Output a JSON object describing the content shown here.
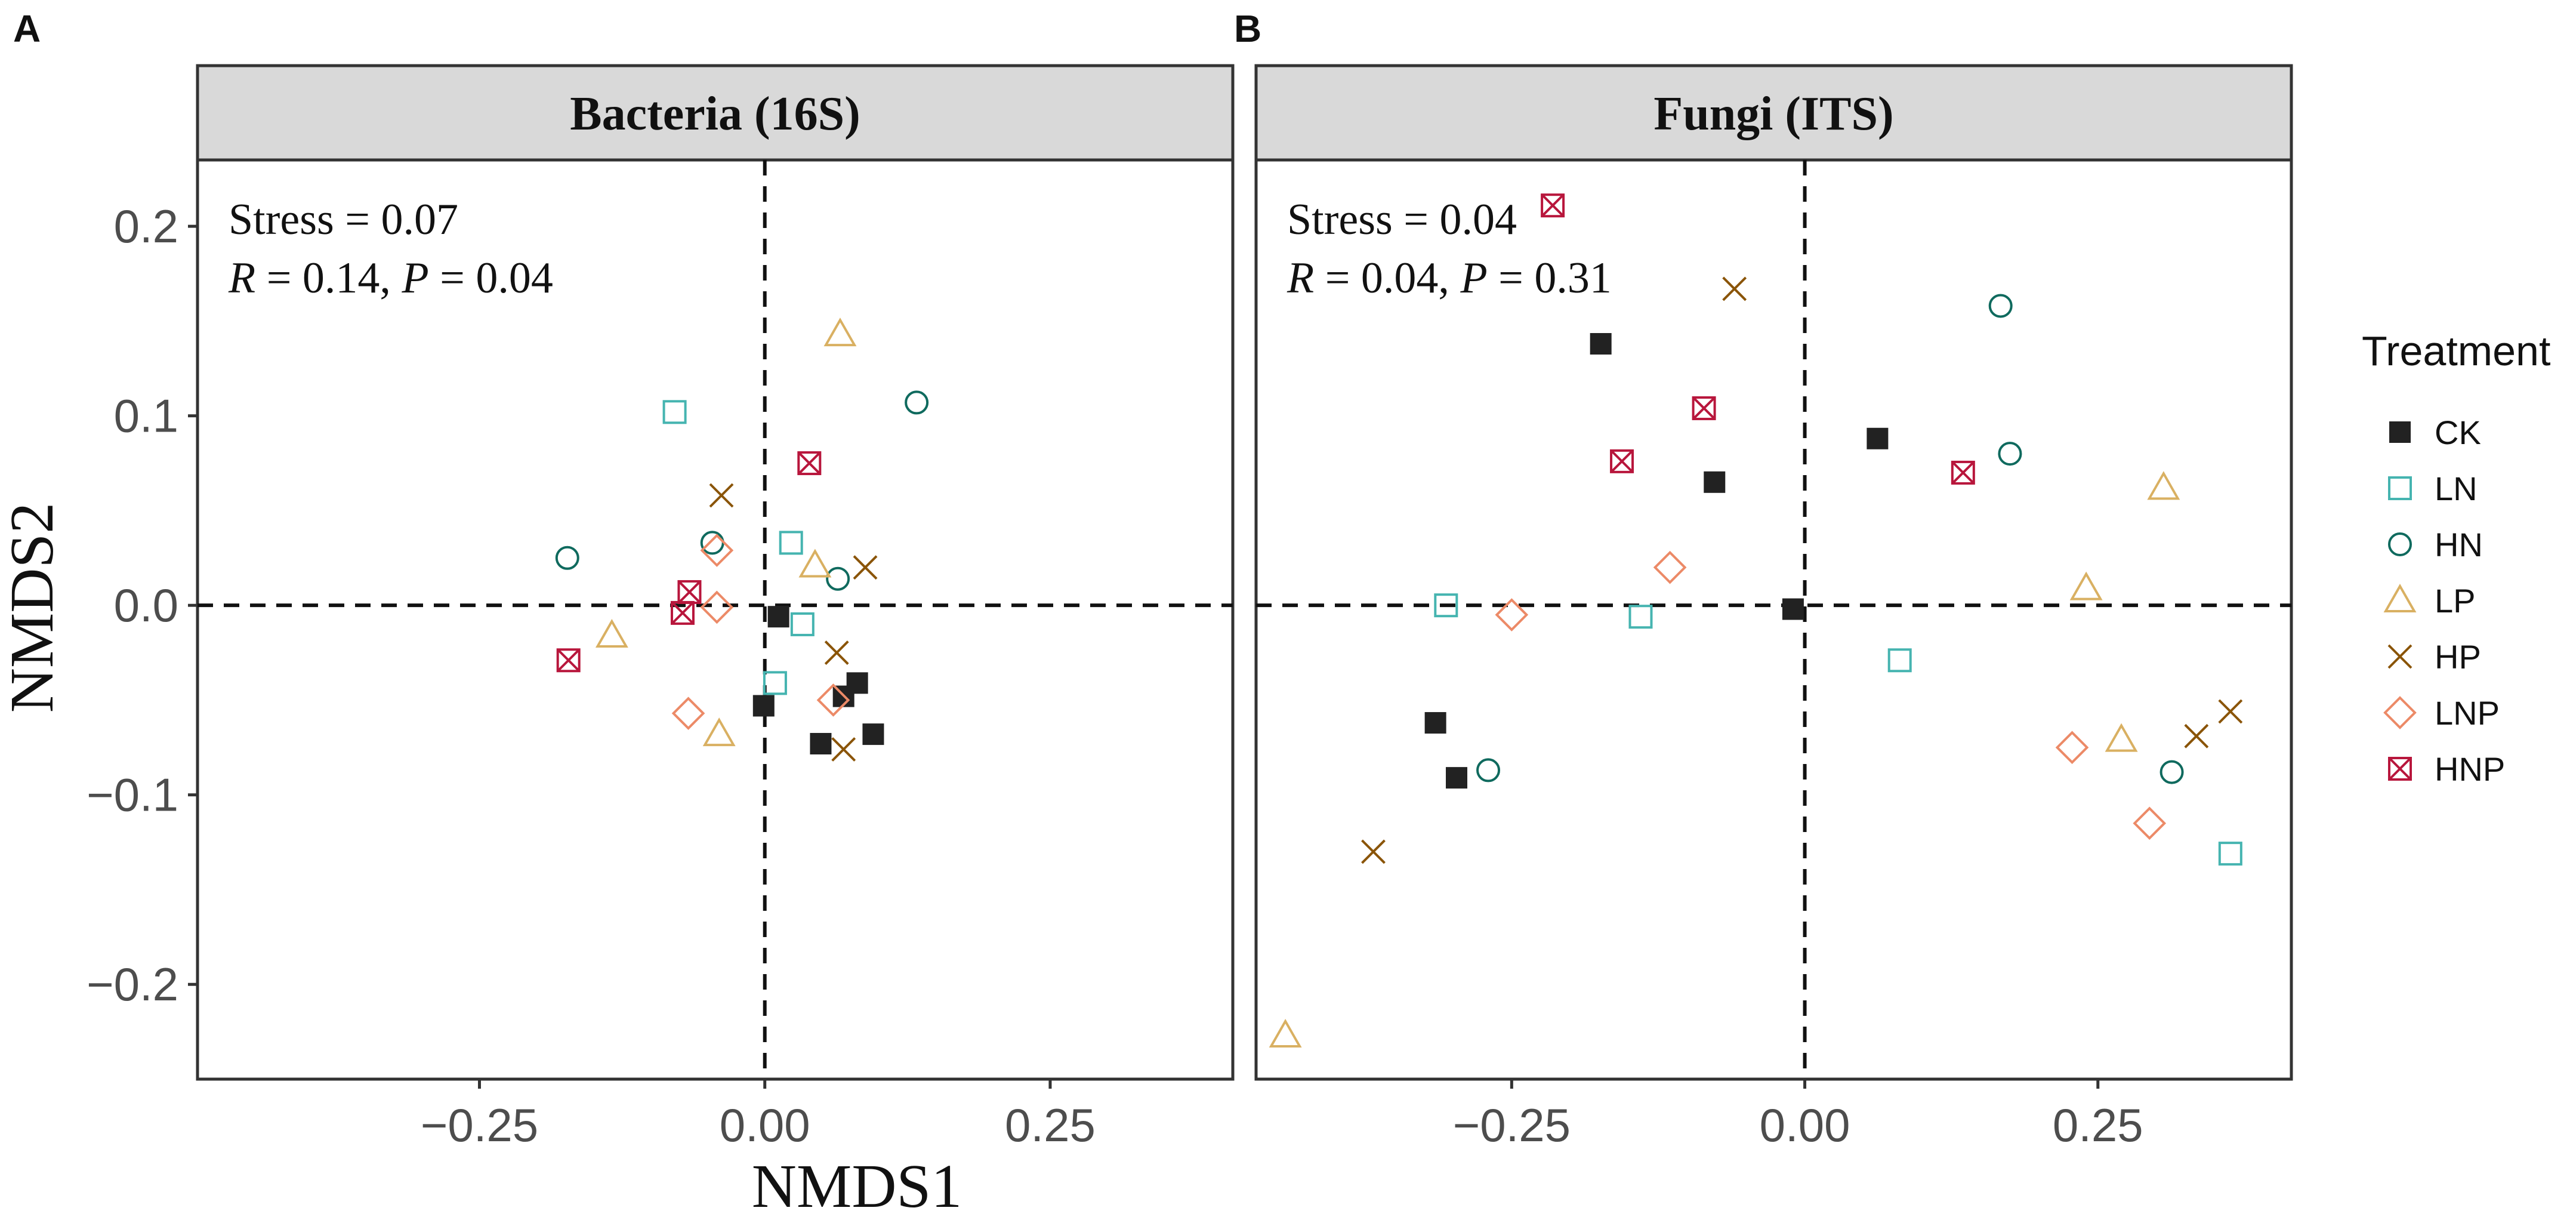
{
  "figure": {
    "x_axis_title": "NMDS1",
    "y_axis_title": "NMDS2",
    "legend_title": "Treatment"
  },
  "treatments": [
    {
      "code": "CK",
      "shape": "filled-square",
      "color": "#222222"
    },
    {
      "code": "LN",
      "shape": "open-square",
      "color": "#45b4b0"
    },
    {
      "code": "HN",
      "shape": "open-circle",
      "color": "#0f6a5e"
    },
    {
      "code": "LP",
      "shape": "open-triangle",
      "color": "#d9b062"
    },
    {
      "code": "HP",
      "shape": "cross",
      "color": "#8a5407"
    },
    {
      "code": "LNP",
      "shape": "open-diamond",
      "color": "#ec8a67"
    },
    {
      "code": "HNP",
      "shape": "boxed-x",
      "color": "#b8163c"
    }
  ],
  "chart_data": [
    {
      "type": "scatter",
      "panel_label": "A",
      "title": "Bacteria (16S)",
      "xlabel": "NMDS1",
      "ylabel": "NMDS2",
      "xlim": [
        -0.497,
        0.41
      ],
      "ylim": [
        -0.25,
        0.235
      ],
      "x_ticks": [
        -0.25,
        0.0,
        0.25
      ],
      "x_tick_labels": [
        "−0.25",
        "0.00",
        "0.25"
      ],
      "y_ticks": [
        -0.2,
        -0.1,
        0.0,
        0.1,
        0.2
      ],
      "y_tick_labels": [
        "−0.2",
        "−0.1",
        "0.0",
        "0.1",
        "0.2"
      ],
      "reference_lines": {
        "x": 0,
        "y": 0
      },
      "annotation": {
        "stress": "Stress = 0.07",
        "r_label": "R",
        "r_value": " = 0.14, ",
        "p_label": "P",
        "p_value": " = 0.04"
      },
      "series": [
        {
          "name": "CK",
          "points": [
            [
              0.012,
              -0.006
            ],
            [
              -0.001,
              -0.053
            ],
            [
              0.049,
              -0.073
            ],
            [
              0.069,
              -0.048
            ],
            [
              0.081,
              -0.041
            ],
            [
              0.095,
              -0.068
            ]
          ]
        },
        {
          "name": "LN",
          "points": [
            [
              -0.079,
              0.102
            ],
            [
              0.023,
              0.033
            ],
            [
              0.033,
              -0.01
            ],
            [
              0.009,
              -0.041
            ]
          ]
        },
        {
          "name": "HN",
          "points": [
            [
              0.133,
              0.107
            ],
            [
              -0.173,
              0.025
            ],
            [
              -0.046,
              0.033
            ],
            [
              0.064,
              0.014
            ]
          ]
        },
        {
          "name": "LP",
          "points": [
            [
              0.066,
              0.143
            ],
            [
              0.044,
              0.021
            ],
            [
              -0.134,
              -0.016
            ],
            [
              -0.04,
              -0.068
            ]
          ]
        },
        {
          "name": "HP",
          "points": [
            [
              -0.038,
              0.058
            ],
            [
              0.088,
              0.02
            ],
            [
              0.063,
              -0.025
            ],
            [
              0.069,
              -0.076
            ]
          ]
        },
        {
          "name": "LNP",
          "points": [
            [
              -0.042,
              0.029
            ],
            [
              -0.042,
              -0.001
            ],
            [
              -0.067,
              -0.057
            ],
            [
              0.06,
              -0.05
            ]
          ]
        },
        {
          "name": "HNP",
          "points": [
            [
              0.039,
              0.075
            ],
            [
              -0.066,
              0.007
            ],
            [
              -0.072,
              -0.004
            ],
            [
              -0.172,
              -0.029
            ]
          ]
        }
      ]
    },
    {
      "type": "scatter",
      "panel_label": "B",
      "title": "Fungi (ITS)",
      "xlabel": "NMDS1",
      "ylabel": "NMDS2",
      "xlim": [
        -0.468,
        0.415
      ],
      "ylim": [
        -0.25,
        0.235
      ],
      "x_ticks": [
        -0.25,
        0.0,
        0.25
      ],
      "x_tick_labels": [
        "−0.25",
        "0.00",
        "0.25"
      ],
      "y_ticks": [
        -0.2,
        -0.1,
        0.0,
        0.1,
        0.2
      ],
      "y_tick_labels": [
        "−0.2",
        "−0.1",
        "0.0",
        "0.1",
        "0.2"
      ],
      "reference_lines": {
        "x": 0,
        "y": 0
      },
      "annotation": {
        "stress": "Stress = 0.04",
        "r_label": "R",
        "r_value": " = 0.04, ",
        "p_label": "P",
        "p_value": " = 0.31"
      },
      "series": [
        {
          "name": "CK",
          "points": [
            [
              -0.174,
              0.138
            ],
            [
              -0.077,
              0.065
            ],
            [
              0.062,
              0.088
            ],
            [
              -0.01,
              -0.002
            ],
            [
              -0.315,
              -0.062
            ],
            [
              -0.297,
              -0.091
            ]
          ]
        },
        {
          "name": "LN",
          "points": [
            [
              -0.306,
              0.0
            ],
            [
              -0.14,
              -0.006
            ],
            [
              0.081,
              -0.029
            ],
            [
              0.363,
              -0.131
            ]
          ]
        },
        {
          "name": "HN",
          "points": [
            [
              0.167,
              0.158
            ],
            [
              0.175,
              0.08
            ],
            [
              -0.27,
              -0.087
            ],
            [
              0.313,
              -0.088
            ]
          ]
        },
        {
          "name": "LP",
          "points": [
            [
              0.306,
              0.062
            ],
            [
              0.24,
              0.009
            ],
            [
              0.27,
              -0.071
            ],
            [
              -0.443,
              -0.227
            ]
          ]
        },
        {
          "name": "HP",
          "points": [
            [
              -0.06,
              0.167
            ],
            [
              -0.368,
              -0.13
            ],
            [
              0.334,
              -0.069
            ],
            [
              0.363,
              -0.056
            ]
          ]
        },
        {
          "name": "LNP",
          "points": [
            [
              -0.115,
              0.02
            ],
            [
              -0.25,
              -0.005
            ],
            [
              0.228,
              -0.075
            ],
            [
              0.294,
              -0.115
            ]
          ]
        },
        {
          "name": "HNP",
          "points": [
            [
              -0.215,
              0.211
            ],
            [
              -0.086,
              0.104
            ],
            [
              -0.156,
              0.076
            ],
            [
              0.135,
              0.07
            ]
          ]
        }
      ]
    }
  ]
}
